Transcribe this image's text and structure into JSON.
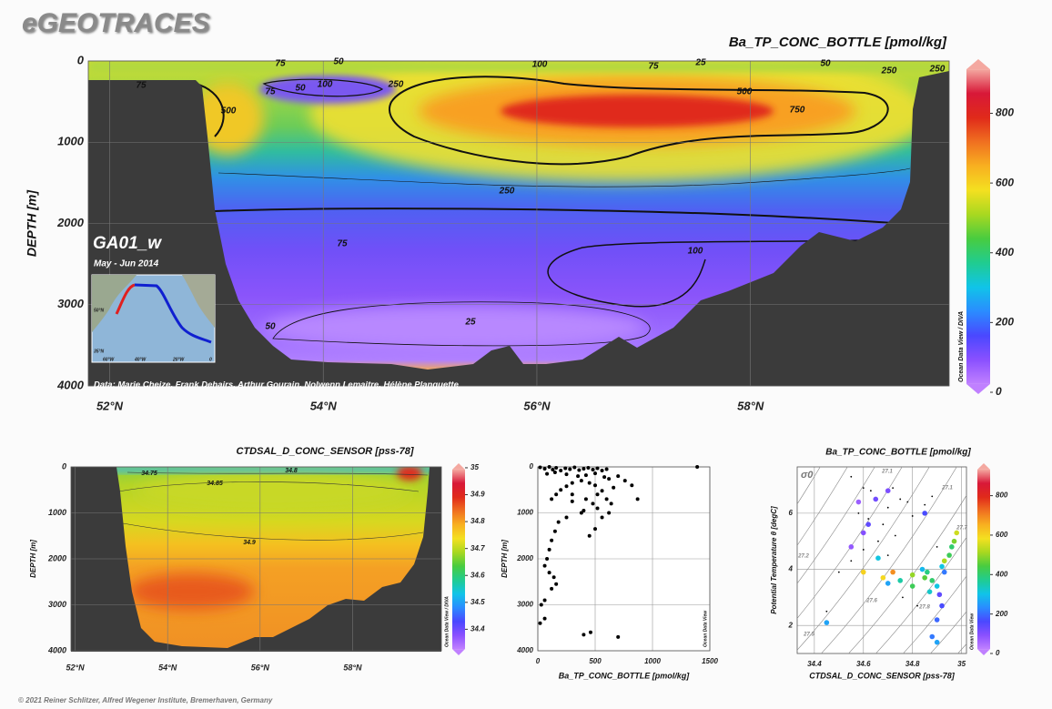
{
  "header": {
    "title": "eGEOTRACES"
  },
  "footer": "© 2021 Reiner Schlitzer, Alfred Wegener Institute, Bremerhaven, Germany",
  "colormap": [
    "#c080ff",
    "#8a50ff",
    "#4a48ff",
    "#2a8cff",
    "#10c4e8",
    "#20cc90",
    "#48cc40",
    "#a8d820",
    "#f4e020",
    "#f8b020",
    "#f07020",
    "#e02a1a",
    "#d81838",
    "#f4a8a0"
  ],
  "chart_data": [
    {
      "type": "section",
      "title": "Ba_TP_CONC_BOTTLE [pmol/kg]",
      "ylabel": "DEPTH [m]",
      "xlim": [
        51.8,
        59.86
      ],
      "xticks": [
        {
          "value": 52,
          "label": "52°N"
        },
        {
          "value": 54,
          "label": "54°N"
        },
        {
          "value": 56,
          "label": "56°N"
        },
        {
          "value": 58,
          "label": "58°N"
        }
      ],
      "ylim": [
        0,
        4000
      ],
      "y_inverted": true,
      "yticks": [
        0,
        1000,
        2000,
        3000,
        4000
      ],
      "grid": true,
      "colorbar": {
        "lim": [
          0,
          950
        ],
        "ticks": [
          0,
          200,
          400,
          600,
          800
        ]
      },
      "contour_labels": [
        75,
        50,
        100,
        75,
        25,
        50,
        250,
        250,
        75,
        75,
        50,
        100,
        250,
        500,
        500,
        750,
        250,
        75,
        100,
        25,
        50
      ],
      "inset": {
        "label": "GA01_w",
        "date": "May - Jun 2014",
        "map_labels": [
          "50°N",
          "35°N",
          "60°W",
          "40°W",
          "20°W",
          "0"
        ]
      },
      "credits": "Data: Marie Cheize, Frank Dehairs, Arthur Gourain, Nolwenn Lemaitre, Hélène Planquette",
      "watermark": "Ocean Data View / DIVA"
    },
    {
      "type": "section",
      "title": "CTDSAL_D_CONC_SENSOR [pss-78]",
      "ylabel": "DEPTH [m]",
      "xlim": [
        51.91,
        59.92
      ],
      "xticks": [
        {
          "value": 52,
          "label": "52°N"
        },
        {
          "value": 54,
          "label": "54°N"
        },
        {
          "value": 56,
          "label": "56°N"
        },
        {
          "value": 58,
          "label": "58°N"
        }
      ],
      "ylim": [
        0,
        4000
      ],
      "y_inverted": true,
      "yticks": [
        0,
        1000,
        2000,
        3000,
        4000
      ],
      "grid": true,
      "colorbar": {
        "lim": [
          34.31,
          35.01
        ],
        "ticks": [
          34.4,
          34.5,
          34.6,
          34.7,
          34.8,
          34.9,
          35
        ]
      },
      "contour_labels": [
        34.75,
        34.8,
        34.85,
        34.9
      ],
      "watermark": "Ocean Data View / DIVA"
    },
    {
      "type": "scatter",
      "xlabel": "Ba_TP_CONC_BOTTLE [pmol/kg]",
      "ylabel": "DEPTH [m]",
      "xlim": [
        0,
        1500
      ],
      "xticks": [
        0,
        500,
        1000,
        1500
      ],
      "ylim": [
        0,
        4000
      ],
      "y_inverted": true,
      "yticks": [
        0,
        1000,
        2000,
        3000,
        4000
      ],
      "grid": true,
      "color": "#000000",
      "series": [
        {
          "x": [
            20,
            60,
            100,
            130,
            160,
            200,
            240,
            280,
            320,
            360,
            400,
            440,
            480,
            520,
            560,
            600,
            80,
            150,
            250,
            350,
            420,
            500,
            580,
            620,
            700,
            760,
            820,
            870,
            660,
            560,
            500,
            450,
            380,
            300,
            250,
            200,
            160,
            120,
            300,
            420,
            480,
            520,
            400,
            560,
            620,
            250,
            180,
            150,
            120,
            100,
            80,
            60,
            100,
            140,
            160,
            120,
            60,
            20,
            60,
            30,
            400,
            460,
            700,
            1390,
            520,
            600,
            640,
            300,
            380,
            450,
            500
          ],
          "y": [
            10,
            40,
            0,
            60,
            20,
            80,
            30,
            50,
            10,
            70,
            40,
            20,
            60,
            30,
            80,
            50,
            150,
            120,
            160,
            200,
            180,
            140,
            220,
            260,
            200,
            300,
            400,
            700,
            450,
            520,
            400,
            350,
            300,
            350,
            420,
            500,
            600,
            700,
            600,
            700,
            800,
            900,
            950,
            1100,
            1000,
            1100,
            1200,
            1400,
            1600,
            1800,
            2000,
            2150,
            2300,
            2400,
            2550,
            2650,
            2900,
            3400,
            3300,
            3000,
            3650,
            3600,
            3700,
            0,
            600,
            700,
            800,
            750,
            1000,
            1500,
            1350
          ]
        }
      ],
      "watermark": "Ocean Data View"
    },
    {
      "type": "scatter",
      "title": "Ba_TP_CONC_BOTTLE [pmol/kg]",
      "xlabel": "CTDSAL_D_CONC_SENSOR [pss-78]",
      "ylabel": "Potential Temperature θ [degC]",
      "xlim": [
        34.33,
        35.02
      ],
      "xticks": [
        34.4,
        34.6,
        34.8,
        35
      ],
      "ylim": [
        1,
        7.65
      ],
      "yticks": [
        2,
        4,
        6
      ],
      "grid": true,
      "color": "#000000",
      "colorbar": {
        "lim": [
          0,
          955
        ],
        "ticks": [
          0,
          200,
          400,
          600,
          800
        ]
      },
      "sigma_label": "σ0",
      "isopycnal_labels": [
        "27.1",
        "27.1",
        "27.2",
        "27.7",
        "27.6",
        "27.8",
        "27.5"
      ],
      "series": [
        {
          "x": [
            34.55,
            34.6,
            34.63,
            34.72,
            34.75,
            34.7,
            34.78,
            34.58,
            34.62,
            34.68,
            34.73,
            34.66,
            34.6,
            34.55,
            34.7,
            34.8,
            34.85,
            34.88,
            34.5,
            34.45,
            34.9,
            34.76,
            34.82
          ],
          "y": [
            7.3,
            6.9,
            6.8,
            6.9,
            6.5,
            6.2,
            6.4,
            6.0,
            5.8,
            5.6,
            5.2,
            5.0,
            4.7,
            4.3,
            4.5,
            5.9,
            6.3,
            6.6,
            3.9,
            2.5,
            4.8,
            3.0,
            2.7
          ]
        },
        {
          "x": [
            34.88,
            34.9,
            34.92,
            34.91,
            34.9,
            34.88,
            34.85,
            34.8,
            34.75,
            34.7,
            34.68,
            34.72,
            34.8,
            34.86,
            34.92,
            34.95,
            34.97,
            34.98,
            34.96,
            34.93,
            34.65,
            34.6,
            34.55,
            34.62,
            34.7,
            34.58,
            34.66,
            34.85,
            34.93,
            34.87,
            34.6,
            34.84,
            34.45,
            34.9
          ],
          "y": [
            1.6,
            2.2,
            2.7,
            3.1,
            3.4,
            3.6,
            3.7,
            3.8,
            3.6,
            3.5,
            3.7,
            3.9,
            3.4,
            3.9,
            4.1,
            4.5,
            5.0,
            5.3,
            4.8,
            3.9,
            6.5,
            5.3,
            4.8,
            5.6,
            6.8,
            6.4,
            4.4,
            6.0,
            4.3,
            3.2,
            3.9,
            4.0,
            2.1,
            1.4
          ],
          "values": [
            200,
            180,
            150,
            120,
            300,
            400,
            450,
            500,
            350,
            250,
            600,
            700,
            420,
            380,
            300,
            420,
            480,
            550,
            400,
            200,
            100,
            80,
            60,
            120,
            90,
            50,
            300,
            150,
            520,
            320,
            610,
            280,
            250,
            250
          ]
        }
      ],
      "watermark": "Ocean Data View"
    }
  ]
}
